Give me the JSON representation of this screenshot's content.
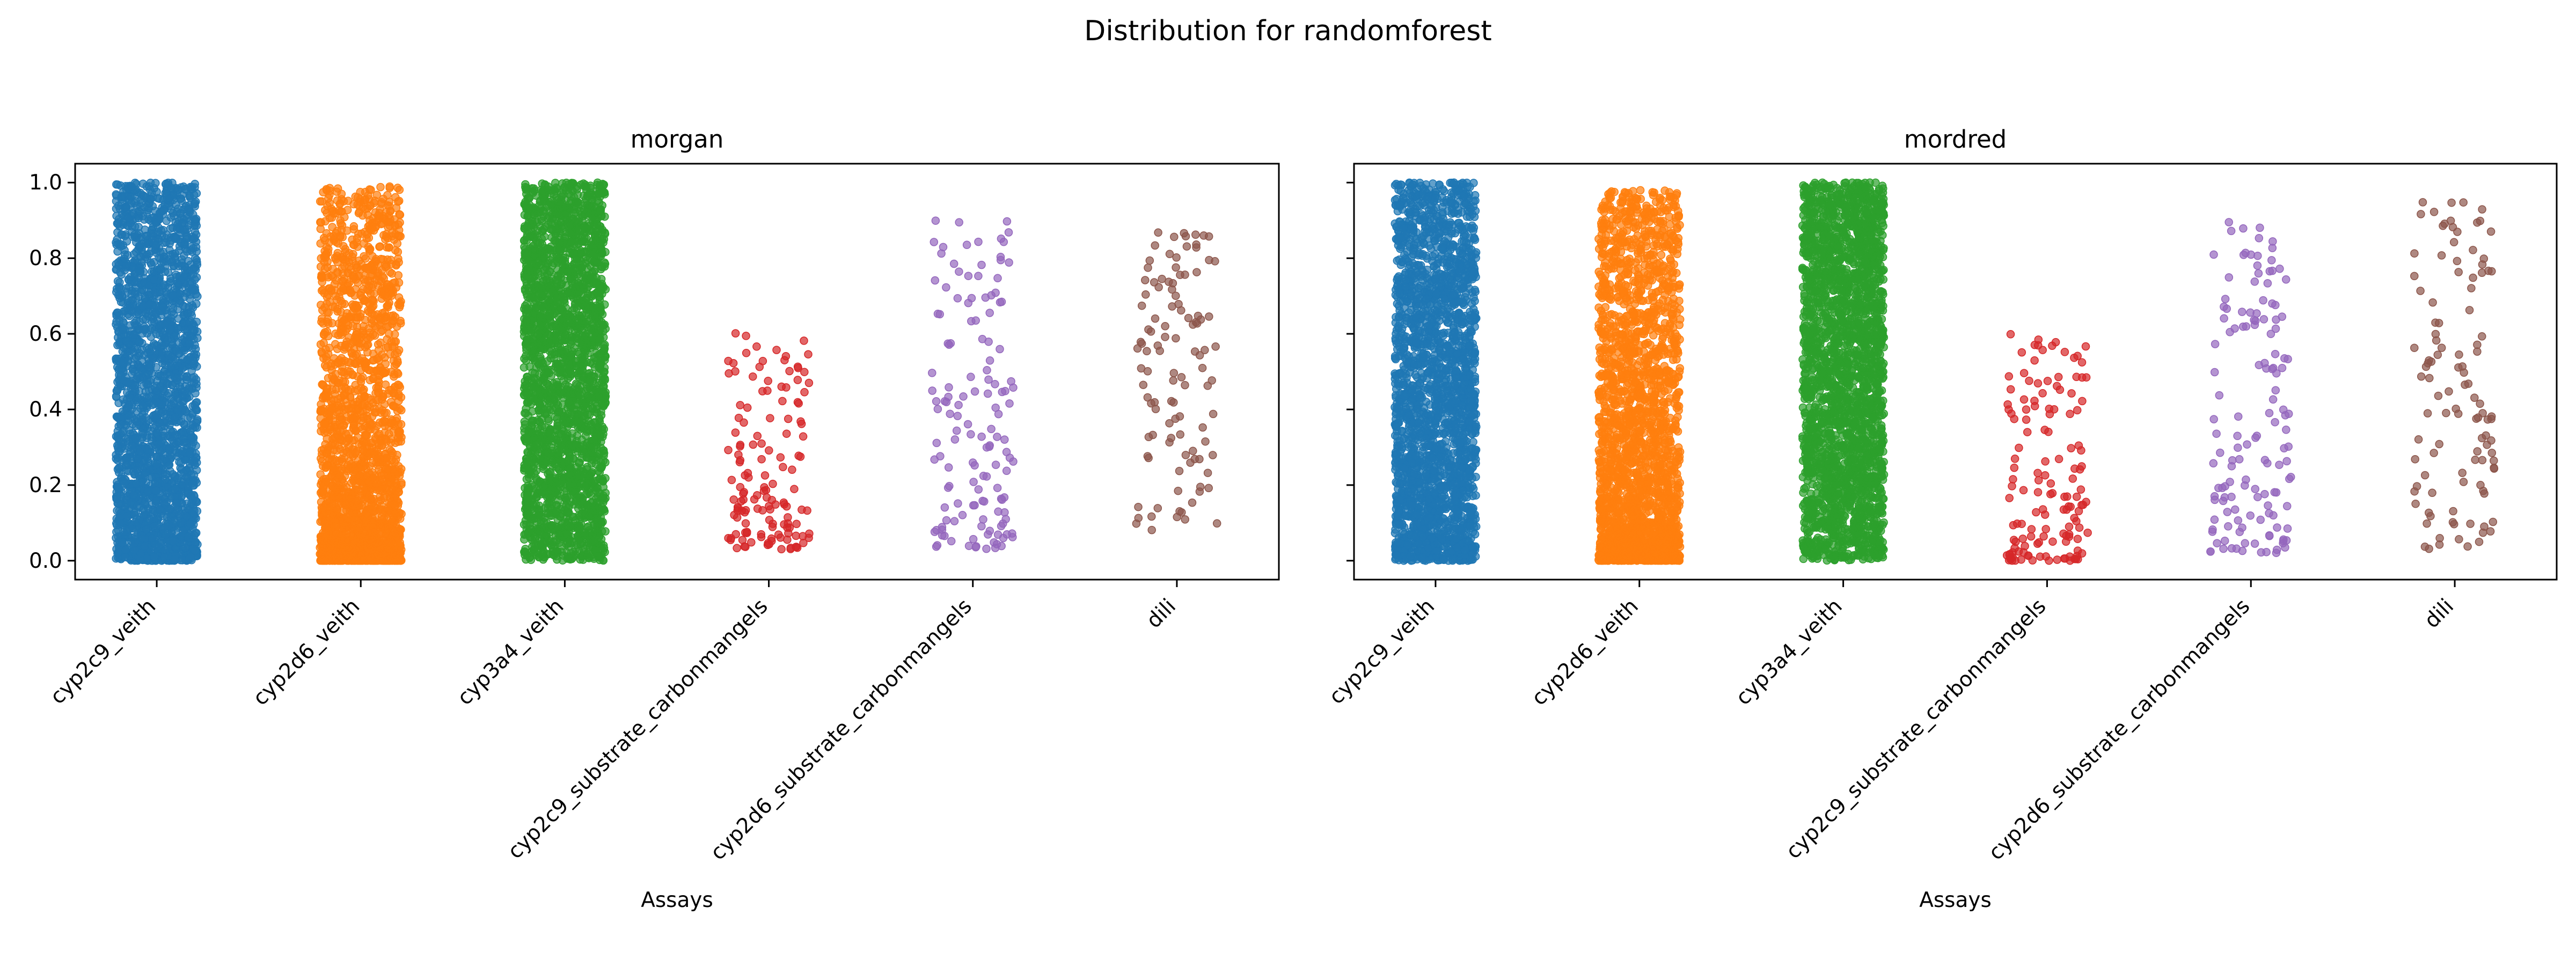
{
  "suptitle": "Distribution for randomforest",
  "categories": [
    "cyp2c9_veith",
    "cyp2d6_veith",
    "cyp3a4_veith",
    "cyp2c9_substrate_carbonmangels",
    "cyp2d6_substrate_carbonmangels",
    "dili"
  ],
  "colors": [
    "#1f77b4",
    "#ff7f0e",
    "#2ca02c",
    "#d62728",
    "#9467bd",
    "#8c564b"
  ],
  "chart_data": [
    {
      "type": "scatter",
      "title": "morgan",
      "xlabel": "Assays",
      "ylabel": "",
      "ylim": [
        -0.05,
        1.05
      ],
      "yticks": [
        "0.0",
        "0.2",
        "0.4",
        "0.6",
        "0.8",
        "1.0"
      ],
      "grid": false,
      "series": [
        {
          "category": "cyp2c9_veith",
          "approx_points": 2400,
          "min": 0.0,
          "max": 1.0,
          "shape": "dense near 0, thinning above 0.85",
          "skew": 1.3
        },
        {
          "category": "cyp2d6_veith",
          "approx_points": 2300,
          "min": 0.0,
          "max": 0.99,
          "shape": "very dense below 0.3, sparse above",
          "skew": 2.2
        },
        {
          "category": "cyp3a4_veith",
          "approx_points": 2500,
          "min": 0.0,
          "max": 1.0,
          "shape": "uniform, dense",
          "skew": 1.0
        },
        {
          "category": "cyp2c9_substrate_carbonmangels",
          "approx_points": 140,
          "min": 0.03,
          "max": 0.63,
          "shape": "concentrated 0.05-0.3",
          "skew": 1.8
        },
        {
          "category": "cyp2d6_substrate_carbonmangels",
          "approx_points": 140,
          "min": 0.03,
          "max": 0.91,
          "shape": "concentrated 0.05-0.4",
          "skew": 1.6
        },
        {
          "category": "dili",
          "approx_points": 110,
          "min": 0.05,
          "max": 0.87,
          "shape": "concentrated 0.4-0.75",
          "skew": 0.8
        }
      ]
    },
    {
      "type": "scatter",
      "title": "mordred",
      "xlabel": "Assays",
      "ylabel": "",
      "ylim": [
        -0.05,
        1.05
      ],
      "yticks": [
        "0.0",
        "0.2",
        "0.4",
        "0.6",
        "0.8",
        "1.0"
      ],
      "grid": false,
      "series": [
        {
          "category": "cyp2c9_veith",
          "approx_points": 2400,
          "min": 0.0,
          "max": 1.0,
          "shape": "dense throughout, thinning above 0.85",
          "skew": 1.2
        },
        {
          "category": "cyp2d6_veith",
          "approx_points": 2300,
          "min": 0.0,
          "max": 0.98,
          "shape": "dense below 0.5, sparse above",
          "skew": 1.9
        },
        {
          "category": "cyp3a4_veith",
          "approx_points": 2500,
          "min": 0.0,
          "max": 1.0,
          "shape": "uniform, dense",
          "skew": 1.0
        },
        {
          "category": "cyp2c9_substrate_carbonmangels",
          "approx_points": 140,
          "min": 0.0,
          "max": 0.6,
          "shape": "concentrated 0.05-0.35",
          "skew": 1.5
        },
        {
          "category": "cyp2d6_substrate_carbonmangels",
          "approx_points": 140,
          "min": 0.02,
          "max": 0.9,
          "shape": "concentrated 0.05-0.4",
          "skew": 1.6
        },
        {
          "category": "dili",
          "approx_points": 110,
          "min": 0.03,
          "max": 0.97,
          "shape": "spread 0.05-0.95",
          "skew": 1.0
        }
      ]
    }
  ]
}
